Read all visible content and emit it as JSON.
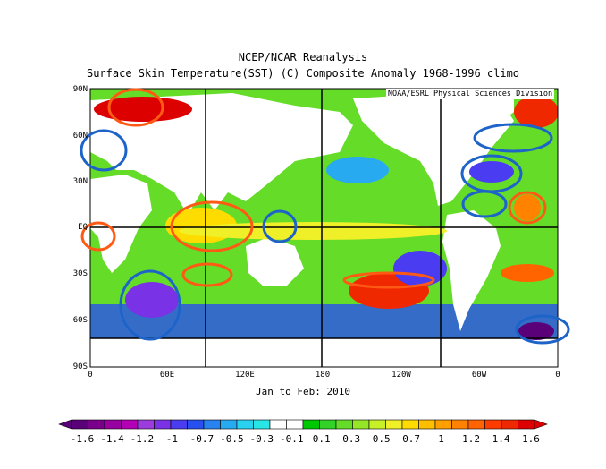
{
  "title_line1": "NCEP/NCAR Reanalysis",
  "title_line2": "Surface Skin Temperature(SST) (C) Composite Anomaly 1968-1996 climo",
  "credit": "NOAA/ESRL Physical Sciences Division",
  "period": "Jan to Feb: 2010",
  "lat_labels": [
    "90N",
    "60N",
    "30N",
    "EQ",
    "30S",
    "60S",
    "90S"
  ],
  "lon_labels": [
    "0",
    "60E",
    "120E",
    "180",
    "120W",
    "60W",
    "0"
  ],
  "colorbar": {
    "labels": [
      "-1.6",
      "-1.4",
      "-1.2",
      "-1",
      "-0.7",
      "-0.5",
      "-0.3",
      "-0.1",
      "0.1",
      "0.3",
      "0.5",
      "0.7",
      "1",
      "1.2",
      "1.4",
      "1.6"
    ],
    "colors": [
      "#5a0078",
      "#7a008c",
      "#9900a0",
      "#b400b4",
      "#9c3cdc",
      "#7a32e6",
      "#4a3cf0",
      "#2850f0",
      "#2882f0",
      "#28aaf0",
      "#28d2f0",
      "#28e6e6",
      "#ffffff",
      "#ffffff",
      "#00c800",
      "#32d228",
      "#64dc28",
      "#96e628",
      "#c8f028",
      "#f0f028",
      "#ffdc00",
      "#ffbe00",
      "#ffa000",
      "#ff8200",
      "#ff6400",
      "#ff3c00",
      "#f02800",
      "#dc0000"
    ]
  },
  "annotations": {
    "warm_color": "#ff5a14",
    "cool_color": "#1e64c8"
  }
}
